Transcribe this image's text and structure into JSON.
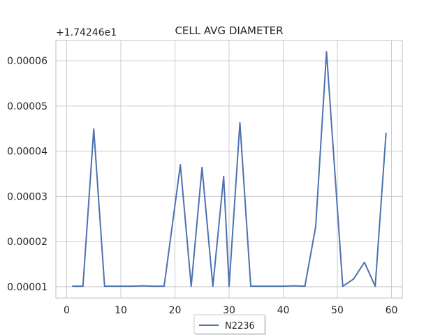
{
  "chart_data": {
    "type": "line",
    "title": "CELL AVG  DIAMETER",
    "y_offset_label": "+1.74246e1",
    "xlabel": "",
    "ylabel": "",
    "xlim": [
      -2,
      62
    ],
    "ylim": [
      7.5e-06,
      6.45e-05
    ],
    "x_ticks": [
      0,
      10,
      20,
      30,
      40,
      50,
      60
    ],
    "y_ticks": [
      1e-05,
      2e-05,
      3e-05,
      4e-05,
      5e-05,
      6e-05
    ],
    "y_tick_labels": [
      "0.00001",
      "0.00002",
      "0.00003",
      "0.00004",
      "0.00005",
      "0.00006"
    ],
    "grid": true,
    "legend_position": "bottom-center",
    "series": [
      {
        "name": "N2236",
        "color": "#4c72b0",
        "x": [
          1,
          3,
          5,
          7,
          10,
          12,
          14,
          16,
          18,
          21,
          23,
          25,
          27,
          29,
          30,
          32,
          34,
          36,
          38,
          40,
          42,
          44,
          46,
          48,
          51,
          53,
          55,
          57,
          59
        ],
        "y": [
          1.01e-05,
          1.01e-05,
          4.49e-05,
          1.01e-05,
          1.01e-05,
          1.01e-05,
          1.02e-05,
          1.01e-05,
          1.01e-05,
          3.7e-05,
          1.01e-05,
          3.64e-05,
          1.01e-05,
          3.44e-05,
          1.01e-05,
          4.63e-05,
          1.01e-05,
          1.01e-05,
          1.01e-05,
          1.01e-05,
          1.02e-05,
          1.01e-05,
          2.33e-05,
          6.2e-05,
          1.01e-05,
          1.17e-05,
          1.54e-05,
          1.01e-05,
          4.41e-05
        ]
      }
    ]
  }
}
